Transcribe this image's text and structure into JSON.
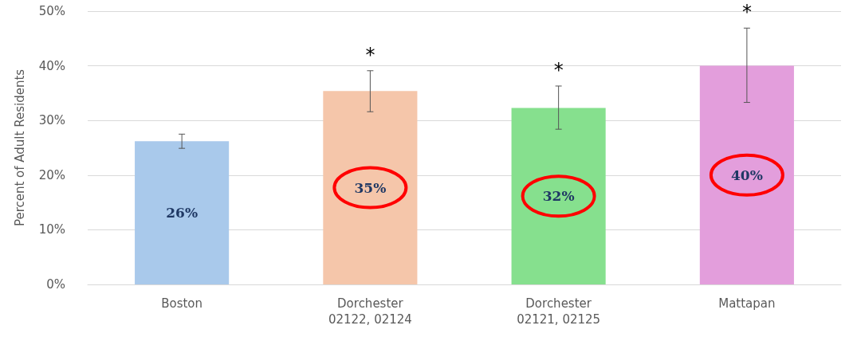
{
  "chart_data": {
    "type": "bar",
    "ylabel": "Percent of Adult Residents",
    "categories": [
      "Boston",
      "Dorchester\n02122, 02124",
      "Dorchester\n02121, 02125",
      "Mattapan"
    ],
    "values": [
      26.2,
      35.4,
      32.3,
      40.0
    ],
    "colors": [
      "#a9c9eb",
      "#f5c6aa",
      "#86e08e",
      "#e39edc"
    ],
    "errors": [
      [
        24.9,
        27.5
      ],
      [
        31.6,
        39.1
      ],
      [
        28.4,
        36.3
      ],
      [
        33.3,
        46.9
      ]
    ],
    "value_labels": [
      "26%",
      "35%",
      "32%",
      "40%"
    ],
    "ylim": [
      0,
      50
    ],
    "yticks": [
      {
        "value": 0,
        "label": "0%"
      },
      {
        "value": 10,
        "label": "10%"
      },
      {
        "value": 20,
        "label": "20%"
      },
      {
        "value": 30,
        "label": "30%"
      },
      {
        "value": 40,
        "label": "40%"
      },
      {
        "value": 50,
        "label": "50%"
      }
    ],
    "grid": "y",
    "annotations": [
      {
        "text": "*",
        "x": "Dorchester\n02122, 02124",
        "y": 39.1
      },
      {
        "text": "*",
        "x": "Dorchester\n02121, 02125",
        "y": 36.3
      },
      {
        "text": "*",
        "x": "Mattapan",
        "y": 46.9
      }
    ]
  }
}
